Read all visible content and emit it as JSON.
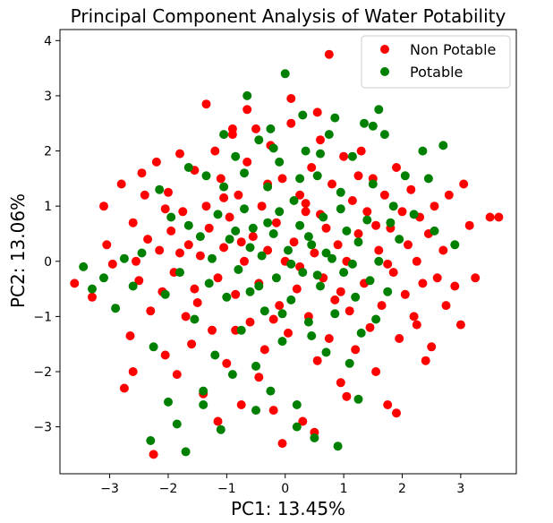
{
  "chart_data": {
    "type": "scatter",
    "title": "Principal Component Analysis of Water Potability",
    "xlabel": "PC1: 13.45%",
    "ylabel": "PC2: 13.06%",
    "xlim": [
      -3.85,
      3.95
    ],
    "ylim": [
      -3.85,
      4.2
    ],
    "xticks": [
      -3,
      -2,
      -1,
      0,
      1,
      2,
      3
    ],
    "yticks": [
      -3,
      -2,
      -1,
      0,
      1,
      2,
      3,
      4
    ],
    "xtick_labels": [
      "−3",
      "−2",
      "−1",
      "0",
      "1",
      "2",
      "3"
    ],
    "ytick_labels": [
      "−3",
      "−2",
      "−1",
      "0",
      "1",
      "2",
      "3",
      "4"
    ],
    "grid": false,
    "legend_position": "top-right",
    "series": [
      {
        "name": "Non Potable",
        "color": "#ff0000",
        "points": [
          [
            -3.6,
            -0.4
          ],
          [
            -3.3,
            -0.65
          ],
          [
            -3.1,
            1.0
          ],
          [
            -3.05,
            0.3
          ],
          [
            -2.95,
            -0.05
          ],
          [
            -2.8,
            1.4
          ],
          [
            -2.75,
            -2.3
          ],
          [
            -2.65,
            -1.35
          ],
          [
            -2.6,
            0.7
          ],
          [
            -2.55,
            0.0
          ],
          [
            -2.5,
            -0.35
          ],
          [
            -2.45,
            1.6
          ],
          [
            -2.4,
            1.2
          ],
          [
            -2.35,
            0.4
          ],
          [
            -2.3,
            -0.9
          ],
          [
            -2.25,
            -3.5
          ],
          [
            -2.2,
            1.8
          ],
          [
            -2.15,
            0.2
          ],
          [
            -2.1,
            -0.55
          ],
          [
            -2.05,
            -1.7
          ],
          [
            -2.0,
            1.25
          ],
          [
            -1.95,
            0.55
          ],
          [
            -1.9,
            -0.2
          ],
          [
            -1.85,
            -2.05
          ],
          [
            -1.8,
            1.95
          ],
          [
            -1.75,
            0.9
          ],
          [
            -1.7,
            -1.0
          ],
          [
            -1.65,
            0.3
          ],
          [
            -1.6,
            -1.5
          ],
          [
            -1.55,
            1.65
          ],
          [
            -1.5,
            -0.75
          ],
          [
            -1.45,
            0.1
          ],
          [
            -1.4,
            -2.4
          ],
          [
            -1.35,
            1.0
          ],
          [
            -1.3,
            0.6
          ],
          [
            -1.25,
            -1.25
          ],
          [
            -1.2,
            2.0
          ],
          [
            -1.15,
            -0.3
          ],
          [
            -1.1,
            1.5
          ],
          [
            -1.05,
            0.25
          ],
          [
            -1.0,
            -1.85
          ],
          [
            -0.95,
            0.8
          ],
          [
            -0.9,
            2.3
          ],
          [
            -0.85,
            -0.6
          ],
          [
            -0.8,
            1.2
          ],
          [
            -0.75,
            -2.6
          ],
          [
            -0.7,
            0.0
          ],
          [
            -0.65,
            1.8
          ],
          [
            -0.6,
            -1.1
          ],
          [
            -0.55,
            0.45
          ],
          [
            -0.5,
            2.4
          ],
          [
            -0.45,
            -0.4
          ],
          [
            -0.4,
            1.0
          ],
          [
            -0.35,
            -1.6
          ],
          [
            -0.3,
            0.2
          ],
          [
            -0.25,
            2.1
          ],
          [
            -0.2,
            -2.7
          ],
          [
            -0.15,
            0.7
          ],
          [
            -0.1,
            -0.8
          ],
          [
            -0.05,
            1.5
          ],
          [
            0.0,
            0.0
          ],
          [
            0.05,
            -1.3
          ],
          [
            0.1,
            2.5
          ],
          [
            0.15,
            0.35
          ],
          [
            0.2,
            -0.5
          ],
          [
            0.25,
            1.2
          ],
          [
            0.3,
            -2.9
          ],
          [
            0.35,
            0.9
          ],
          [
            0.4,
            -1.0
          ],
          [
            0.45,
            1.7
          ],
          [
            0.5,
            0.15
          ],
          [
            0.55,
            -1.8
          ],
          [
            0.6,
            2.2
          ],
          [
            0.65,
            -0.3
          ],
          [
            0.7,
            0.6
          ],
          [
            0.75,
            -1.4
          ],
          [
            0.8,
            1.4
          ],
          [
            0.85,
            -0.7
          ],
          [
            0.9,
            0.3
          ],
          [
            0.95,
            -2.2
          ],
          [
            1.0,
            1.9
          ],
          [
            1.05,
            0.0
          ],
          [
            1.1,
            -0.9
          ],
          [
            1.15,
            1.1
          ],
          [
            1.2,
            -1.6
          ],
          [
            1.25,
            0.5
          ],
          [
            1.3,
            2.0
          ],
          [
            1.35,
            -0.4
          ],
          [
            1.4,
            0.9
          ],
          [
            1.45,
            -1.2
          ],
          [
            1.5,
            1.5
          ],
          [
            1.55,
            -2.0
          ],
          [
            1.6,
            0.2
          ],
          [
            1.65,
            -0.8
          ],
          [
            1.7,
            1.2
          ],
          [
            1.75,
            -2.6
          ],
          [
            1.8,
            0.6
          ],
          [
            1.85,
            -0.2
          ],
          [
            1.9,
            1.7
          ],
          [
            1.95,
            -1.4
          ],
          [
            2.0,
            0.9
          ],
          [
            2.05,
            -0.6
          ],
          [
            2.1,
            0.3
          ],
          [
            2.15,
            1.3
          ],
          [
            2.2,
            -1.0
          ],
          [
            2.25,
            0.0
          ],
          [
            2.3,
            0.8
          ],
          [
            2.35,
            -0.4
          ],
          [
            2.4,
            -1.8
          ],
          [
            2.45,
            0.5
          ],
          [
            2.5,
            -1.55
          ],
          [
            2.55,
            1.0
          ],
          [
            2.6,
            -0.3
          ],
          [
            2.7,
            0.2
          ],
          [
            2.75,
            -0.8
          ],
          [
            2.8,
            1.2
          ],
          [
            2.9,
            -0.45
          ],
          [
            3.0,
            -1.15
          ],
          [
            3.05,
            1.4
          ],
          [
            3.15,
            0.65
          ],
          [
            3.25,
            -0.3
          ],
          [
            3.5,
            0.8
          ],
          [
            3.65,
            0.8
          ],
          [
            -0.65,
            2.75
          ],
          [
            0.1,
            2.95
          ],
          [
            -1.35,
            2.85
          ],
          [
            -0.9,
            2.4
          ],
          [
            0.55,
            2.7
          ],
          [
            -2.6,
            -2.0
          ],
          [
            -1.15,
            -2.9
          ],
          [
            -0.05,
            -3.3
          ],
          [
            0.5,
            -3.1
          ],
          [
            1.05,
            -2.45
          ],
          [
            1.9,
            -2.75
          ],
          [
            0.75,
            3.75
          ],
          [
            -0.3,
            1.4
          ],
          [
            0.25,
            -0.1
          ],
          [
            -0.75,
            0.35
          ],
          [
            0.6,
            0.85
          ],
          [
            -0.2,
            -1.05
          ],
          [
            1.25,
            1.55
          ],
          [
            -1.55,
            -0.5
          ],
          [
            2.25,
            -1.15
          ],
          [
            -2.05,
            0.95
          ],
          [
            0.95,
            -0.55
          ],
          [
            -0.45,
            -2.1
          ],
          [
            1.55,
            0.65
          ],
          [
            -1.05,
            1.15
          ],
          [
            0.35,
            1.05
          ],
          [
            -0.85,
            -1.25
          ],
          [
            1.75,
            -0.05
          ],
          [
            -1.8,
            0.15
          ]
        ]
      },
      {
        "name": "Potable",
        "color": "#008000",
        "points": [
          [
            -3.45,
            -0.1
          ],
          [
            -3.3,
            -0.5
          ],
          [
            -3.1,
            -0.3
          ],
          [
            -2.9,
            -0.85
          ],
          [
            -2.75,
            0.05
          ],
          [
            -2.6,
            -0.45
          ],
          [
            -2.45,
            0.15
          ],
          [
            -2.3,
            -3.25
          ],
          [
            -2.25,
            -1.55
          ],
          [
            -2.15,
            1.3
          ],
          [
            -2.05,
            -0.6
          ],
          [
            -1.95,
            0.8
          ],
          [
            -1.85,
            -2.95
          ],
          [
            -1.8,
            -0.2
          ],
          [
            -1.7,
            -3.45
          ],
          [
            -1.65,
            1.7
          ],
          [
            -1.55,
            -1.05
          ],
          [
            -1.45,
            0.45
          ],
          [
            -1.4,
            -2.35
          ],
          [
            -1.35,
            1.55
          ],
          [
            -1.3,
            -0.4
          ],
          [
            -1.2,
            -1.7
          ],
          [
            -1.15,
            0.85
          ],
          [
            -1.1,
            -3.05
          ],
          [
            -1.05,
            1.35
          ],
          [
            -1.0,
            -0.65
          ],
          [
            -0.95,
            0.4
          ],
          [
            -0.9,
            -2.05
          ],
          [
            -0.85,
            1.9
          ],
          [
            -0.8,
            -0.15
          ],
          [
            -0.75,
            -1.25
          ],
          [
            -0.7,
            0.95
          ],
          [
            -0.65,
            3.0
          ],
          [
            -0.6,
            -0.55
          ],
          [
            -0.55,
            0.6
          ],
          [
            -0.5,
            -1.9
          ],
          [
            -0.45,
            2.2
          ],
          [
            -0.4,
            0.1
          ],
          [
            -0.35,
            -0.9
          ],
          [
            -0.3,
            1.35
          ],
          [
            -0.25,
            -2.35
          ],
          [
            -0.2,
            0.5
          ],
          [
            -0.15,
            -0.3
          ],
          [
            -0.1,
            1.8
          ],
          [
            -0.05,
            -1.45
          ],
          [
            0.0,
            3.4
          ],
          [
            0.05,
            0.2
          ],
          [
            0.1,
            -0.7
          ],
          [
            0.15,
            1.1
          ],
          [
            0.2,
            -2.6
          ],
          [
            0.25,
            0.65
          ],
          [
            0.3,
            -0.2
          ],
          [
            0.35,
            2.0
          ],
          [
            0.4,
            -1.1
          ],
          [
            0.45,
            0.3
          ],
          [
            0.5,
            -3.2
          ],
          [
            0.55,
            1.55
          ],
          [
            0.6,
            -0.45
          ],
          [
            0.65,
            0.8
          ],
          [
            0.7,
            -1.65
          ],
          [
            0.75,
            2.3
          ],
          [
            0.8,
            0.05
          ],
          [
            0.85,
            -0.95
          ],
          [
            0.9,
            -3.35
          ],
          [
            0.95,
            1.25
          ],
          [
            1.0,
            -0.2
          ],
          [
            1.05,
            0.55
          ],
          [
            1.1,
            -1.85
          ],
          [
            1.15,
            1.9
          ],
          [
            1.2,
            -0.65
          ],
          [
            1.25,
            0.35
          ],
          [
            1.3,
            -1.3
          ],
          [
            1.35,
            2.5
          ],
          [
            1.4,
            0.75
          ],
          [
            1.45,
            -0.35
          ],
          [
            1.5,
            1.4
          ],
          [
            1.55,
            -1.05
          ],
          [
            1.6,
            0.0
          ],
          [
            1.7,
            2.3
          ],
          [
            1.75,
            -0.55
          ],
          [
            1.85,
            1.0
          ],
          [
            1.95,
            0.4
          ],
          [
            2.05,
            1.55
          ],
          [
            2.2,
            0.85
          ],
          [
            2.35,
            2.0
          ],
          [
            2.45,
            1.5
          ],
          [
            2.55,
            0.55
          ],
          [
            2.7,
            2.1
          ],
          [
            2.9,
            0.3
          ],
          [
            0.3,
            2.65
          ],
          [
            -0.25,
            2.4
          ],
          [
            0.85,
            2.6
          ],
          [
            -1.05,
            2.3
          ],
          [
            1.6,
            2.75
          ],
          [
            1.5,
            2.45
          ],
          [
            -0.5,
            -2.7
          ],
          [
            0.2,
            -3.0
          ],
          [
            -1.4,
            -2.6
          ],
          [
            1.25,
            -2.5
          ],
          [
            -2.0,
            -2.55
          ],
          [
            -0.1,
            0.9
          ],
          [
            0.4,
            0.45
          ],
          [
            -0.6,
            0.25
          ],
          [
            0.1,
            -0.05
          ],
          [
            -0.3,
            0.7
          ],
          [
            0.55,
            -0.25
          ],
          [
            -0.85,
            0.55
          ],
          [
            0.25,
            1.5
          ],
          [
            -0.45,
            -0.45
          ],
          [
            0.7,
            0.15
          ],
          [
            -1.25,
            0.05
          ],
          [
            0.95,
            0.95
          ],
          [
            -0.05,
            -0.95
          ],
          [
            0.45,
            -1.35
          ],
          [
            -0.7,
            1.6
          ],
          [
            1.15,
            -0.05
          ],
          [
            -1.65,
            0.65
          ],
          [
            1.8,
            0.7
          ],
          [
            -0.2,
            2.05
          ],
          [
            0.6,
            1.95
          ]
        ]
      }
    ]
  }
}
